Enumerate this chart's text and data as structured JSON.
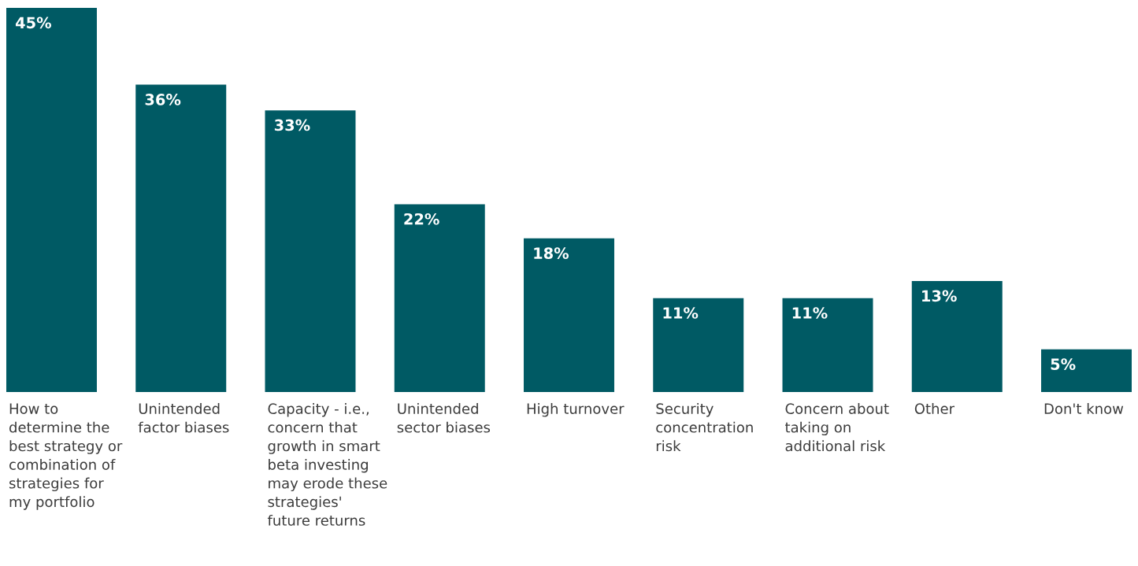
{
  "chart_data": {
    "type": "bar",
    "categories": [
      "How to determine the best strategy or combination of strategies for my portfolio",
      "Unintended factor biases",
      "Capacity - i.e., concern that growth in smart beta investing may erode these strategies' future returns",
      "Unintended sector biases",
      "High turnover",
      "Security concentration risk",
      "Concern about taking on additional risk",
      "Other",
      "Don't know"
    ],
    "values": [
      45,
      36,
      33,
      22,
      18,
      11,
      11,
      13,
      5
    ],
    "value_labels": [
      "45%",
      "36%",
      "33%",
      "22%",
      "18%",
      "11%",
      "11%",
      "13%",
      "5%"
    ],
    "color": "#005a64",
    "data_labels": true
  }
}
